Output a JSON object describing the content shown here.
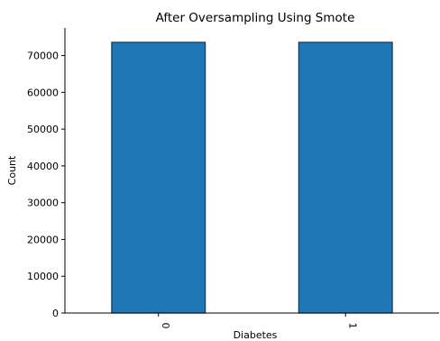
{
  "chart_data": {
    "type": "bar",
    "title": "After Oversampling Using Smote",
    "xlabel": "Diabetes",
    "ylabel": "Count",
    "categories": [
      "0",
      "1"
    ],
    "values": [
      73600,
      73600
    ],
    "ylim": [
      0,
      77500
    ],
    "yticks": [
      0,
      10000,
      20000,
      30000,
      40000,
      50000,
      60000,
      70000
    ],
    "ytick_labels": [
      "0",
      "10000",
      "20000",
      "30000",
      "40000",
      "50000",
      "60000",
      "70000"
    ],
    "grid": false,
    "legend": "none",
    "colors": {
      "bar_fill": "#1f77b4",
      "bar_edge": "#0d3b5c",
      "axis": "#000000"
    }
  }
}
